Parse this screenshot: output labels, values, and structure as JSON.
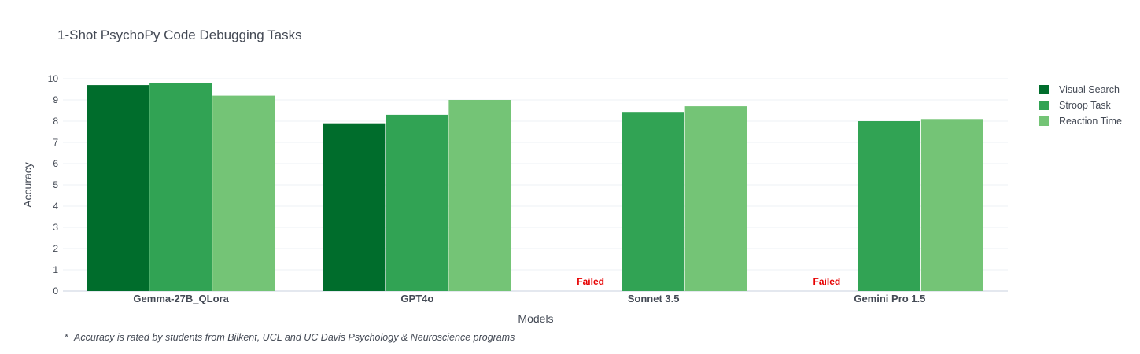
{
  "chart_data": {
    "type": "bar",
    "title": "1-Shot PsychoPy Code Debugging Tasks",
    "xlabel": "Models",
    "ylabel": "Accuracy",
    "ylim": [
      0,
      10
    ],
    "yticks": [
      0,
      1,
      2,
      3,
      4,
      5,
      6,
      7,
      8,
      9,
      10
    ],
    "categories": [
      "Gemma-27B_QLora",
      "GPT4o",
      "Sonnet 3.5",
      "Gemini Pro 1.5"
    ],
    "series": [
      {
        "name": "Visual Search",
        "color": "#006d2c",
        "values": [
          9.7,
          7.9,
          null,
          null
        ]
      },
      {
        "name": "Stroop Task",
        "color": "#31a354",
        "values": [
          9.8,
          8.3,
          8.4,
          8.0
        ]
      },
      {
        "name": "Reaction Time",
        "color": "#74c476",
        "values": [
          9.2,
          9.0,
          8.7,
          8.1
        ]
      }
    ],
    "annotations": [
      {
        "category": "Sonnet 3.5",
        "series": "Visual Search",
        "text": "Failed",
        "color": "#e60000"
      },
      {
        "category": "Gemini Pro 1.5",
        "series": "Visual Search",
        "text": "Failed",
        "color": "#e60000"
      }
    ],
    "grid": true,
    "legend_position": "top-right",
    "footnote_marker": "*",
    "footnote": "Accuracy is rated by students from Bilkent, UCL and UC Davis Psychology & Neuroscience programs"
  }
}
